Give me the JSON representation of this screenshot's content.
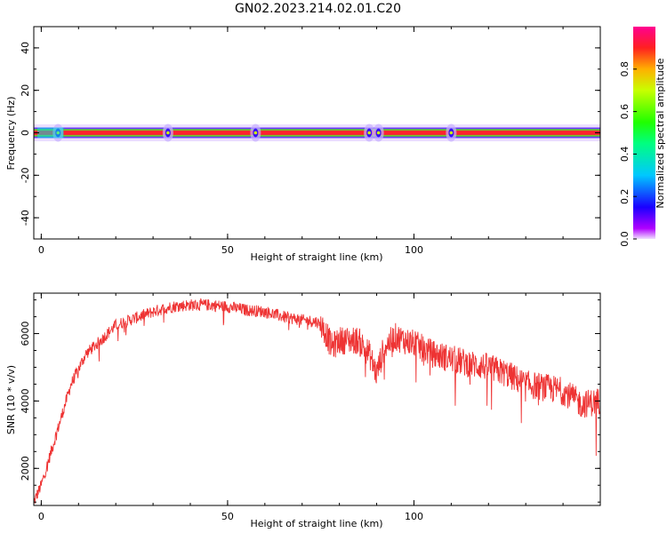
{
  "title": "GN02.2023.214.02.01.C20",
  "chart_data": [
    {
      "type": "heatmap",
      "name": "spectrogram",
      "xlabel": "Height of straight line (km)",
      "ylabel": "Frequency (Hz)",
      "xlim": [
        -2,
        150
      ],
      "ylim": [
        -50,
        50
      ],
      "xticks": [
        0,
        50,
        100
      ],
      "yticks": [
        -40,
        -20,
        0,
        20,
        40
      ],
      "colorbar": {
        "label": "Normalized spectral amplitude",
        "range": [
          0,
          1
        ],
        "ticks": [
          "0.0",
          "0.2",
          "0.4",
          "0.6",
          "0.8"
        ],
        "colormap": "gist_rainbow"
      },
      "band_center_hz": 0,
      "band_core_halfwidth_hz": 1,
      "band_edge_halfwidth_hz": 2.5,
      "strong_spots_km": [
        4.5,
        34,
        57.5,
        88,
        90.5,
        110
      ]
    },
    {
      "type": "line",
      "name": "snr",
      "xlabel": "Height of straight line (km)",
      "ylabel": "SNR (10 * v/v)",
      "xlim": [
        -2,
        150
      ],
      "ylim": [
        900,
        7200
      ],
      "xticks": [
        0,
        50,
        100
      ],
      "yticks": [
        2000,
        4000,
        6000
      ],
      "color": "#ee3333",
      "x": [
        -2,
        0,
        4,
        8,
        12,
        16,
        20,
        25,
        30,
        35,
        40,
        45,
        50,
        55,
        60,
        65,
        70,
        74,
        76,
        78,
        80,
        85,
        88,
        90,
        92,
        95,
        100,
        105,
        110,
        115,
        120,
        125,
        130,
        135,
        140,
        145,
        150
      ],
      "y": [
        1000,
        1500,
        3000,
        4500,
        5400,
        5800,
        6250,
        6450,
        6650,
        6800,
        6850,
        6850,
        6800,
        6700,
        6650,
        6500,
        6400,
        6350,
        6100,
        5600,
        5800,
        5800,
        5400,
        4800,
        5600,
        5900,
        5700,
        5400,
        5250,
        5100,
        5000,
        4800,
        4500,
        4400,
        4300,
        3900,
        4000
      ]
    }
  ]
}
